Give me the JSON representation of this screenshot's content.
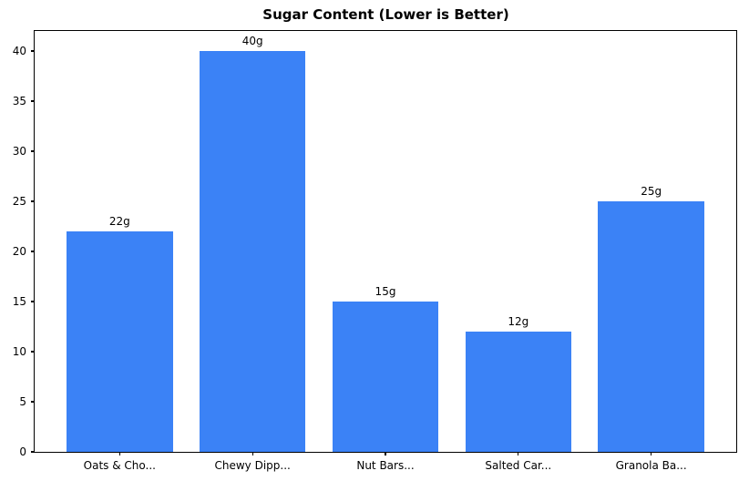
{
  "chart_data": {
    "type": "bar",
    "title": "Sugar Content (Lower is Better)",
    "categories": [
      "Oats & Cho...",
      "Chewy Dipp...",
      "Nut Bars...",
      "Salted Car...",
      "Granola Ba..."
    ],
    "values": [
      22,
      40,
      15,
      12,
      25
    ],
    "bar_labels": [
      "22g",
      "40g",
      "15g",
      "12g",
      "25g"
    ],
    "xlabel": "",
    "ylabel": "",
    "ylim": [
      0,
      42
    ],
    "yticks": [
      0,
      5,
      10,
      15,
      20,
      25,
      30,
      35,
      40
    ],
    "grid": false,
    "legend_position": "none",
    "bar_color": "#3b82f6"
  }
}
